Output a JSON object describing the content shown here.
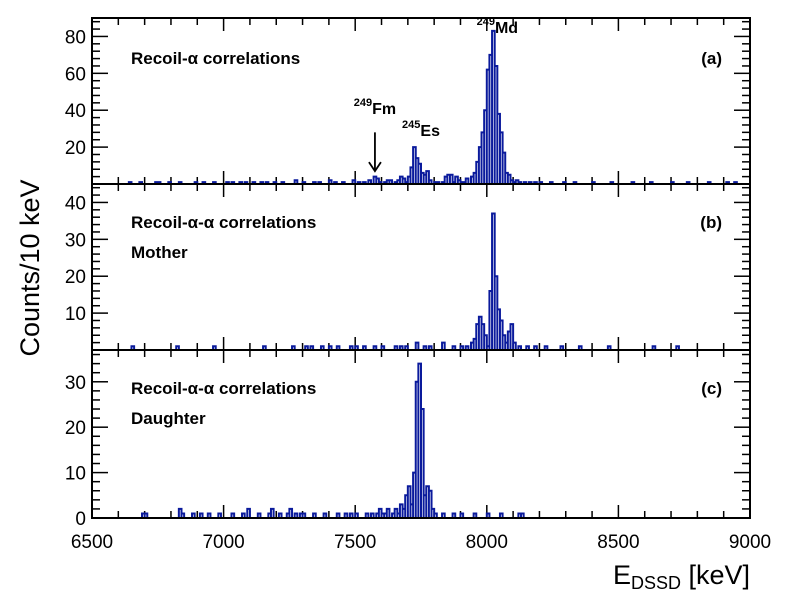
{
  "chart_data": {
    "type": "line",
    "style": "step-histogram",
    "series_color": "#0a1a9c",
    "xlabel_main": "E",
    "xlabel_sub": "DSSD",
    "xlabel_unit": " [keV]",
    "ylabel": "Counts/10 keV",
    "xlim": [
      6500,
      9000
    ],
    "xticks": [
      "6500",
      "7000",
      "7500",
      "8000",
      "8500",
      "9000"
    ],
    "bin_width": 10,
    "panels": [
      {
        "id": "a",
        "tag": "(a)",
        "title": "Recoil-α correlations",
        "subtitle": "",
        "ylim": [
          0,
          90
        ],
        "yticks": [
          "20",
          "40",
          "60",
          "80"
        ],
        "annotations": [
          {
            "sup": "249",
            "label": "Md",
            "x": 8040,
            "y": 82
          },
          {
            "sup": "245",
            "label": "Es",
            "x": 7750,
            "y": 26
          },
          {
            "sup": "249",
            "label": "Fm",
            "x": 7575,
            "y": 38,
            "arrow_to": 7,
            "arrow_from": 28
          }
        ],
        "bins": [
          [
            6640,
            1
          ],
          [
            6680,
            1
          ],
          [
            6740,
            1
          ],
          [
            6750,
            1
          ],
          [
            6790,
            1
          ],
          [
            6830,
            1
          ],
          [
            6890,
            1
          ],
          [
            6920,
            1
          ],
          [
            6960,
            1
          ],
          [
            7010,
            1
          ],
          [
            7030,
            1
          ],
          [
            7060,
            1
          ],
          [
            7080,
            1
          ],
          [
            7110,
            1
          ],
          [
            7140,
            1
          ],
          [
            7160,
            1
          ],
          [
            7190,
            1
          ],
          [
            7220,
            1
          ],
          [
            7270,
            2
          ],
          [
            7300,
            1
          ],
          [
            7340,
            1
          ],
          [
            7360,
            1
          ],
          [
            7400,
            2
          ],
          [
            7420,
            1
          ],
          [
            7450,
            1
          ],
          [
            7490,
            2
          ],
          [
            7510,
            1
          ],
          [
            7530,
            1
          ],
          [
            7550,
            2
          ],
          [
            7570,
            4
          ],
          [
            7580,
            3
          ],
          [
            7590,
            1
          ],
          [
            7610,
            1
          ],
          [
            7620,
            2
          ],
          [
            7630,
            2
          ],
          [
            7650,
            1
          ],
          [
            7660,
            2
          ],
          [
            7670,
            4
          ],
          [
            7680,
            3
          ],
          [
            7690,
            1
          ],
          [
            7700,
            4
          ],
          [
            7710,
            9
          ],
          [
            7720,
            20
          ],
          [
            7730,
            14
          ],
          [
            7740,
            11
          ],
          [
            7750,
            6
          ],
          [
            7760,
            5
          ],
          [
            7770,
            7
          ],
          [
            7780,
            2
          ],
          [
            7800,
            1
          ],
          [
            7810,
            1
          ],
          [
            7830,
            1
          ],
          [
            7840,
            4
          ],
          [
            7850,
            5
          ],
          [
            7860,
            5
          ],
          [
            7870,
            1
          ],
          [
            7880,
            4
          ],
          [
            7890,
            2
          ],
          [
            7900,
            1
          ],
          [
            7910,
            1
          ],
          [
            7920,
            3
          ],
          [
            7940,
            4
          ],
          [
            7950,
            6
          ],
          [
            7960,
            12
          ],
          [
            7970,
            20
          ],
          [
            7980,
            28
          ],
          [
            7990,
            40
          ],
          [
            8000,
            62
          ],
          [
            8010,
            70
          ],
          [
            8020,
            83
          ],
          [
            8030,
            64
          ],
          [
            8040,
            38
          ],
          [
            8050,
            28
          ],
          [
            8060,
            17
          ],
          [
            8070,
            6
          ],
          [
            8080,
            5
          ],
          [
            8090,
            2
          ],
          [
            8100,
            1
          ],
          [
            8110,
            2
          ],
          [
            8120,
            1
          ],
          [
            8140,
            1
          ],
          [
            8160,
            1
          ],
          [
            8180,
            1
          ],
          [
            8200,
            1
          ],
          [
            8240,
            1
          ],
          [
            8290,
            1
          ],
          [
            8330,
            1
          ],
          [
            8400,
            1
          ],
          [
            8470,
            1
          ],
          [
            8550,
            1
          ],
          [
            8620,
            1
          ],
          [
            8700,
            1
          ],
          [
            8760,
            1
          ],
          [
            8840,
            1
          ],
          [
            8910,
            1
          ],
          [
            8940,
            1
          ]
        ]
      },
      {
        "id": "b",
        "tag": "(b)",
        "title": "Recoil-α-α correlations",
        "subtitle": "Mother",
        "ylim": [
          0,
          45
        ],
        "yticks": [
          "10",
          "20",
          "30",
          "40"
        ],
        "annotations": [],
        "bins": [
          [
            6650,
            1
          ],
          [
            6820,
            1
          ],
          [
            6960,
            1
          ],
          [
            7150,
            1
          ],
          [
            7260,
            1
          ],
          [
            7310,
            1
          ],
          [
            7330,
            1
          ],
          [
            7370,
            1
          ],
          [
            7400,
            1
          ],
          [
            7430,
            1
          ],
          [
            7480,
            1
          ],
          [
            7500,
            1
          ],
          [
            7530,
            1
          ],
          [
            7570,
            1
          ],
          [
            7600,
            1
          ],
          [
            7650,
            1
          ],
          [
            7670,
            1
          ],
          [
            7690,
            1
          ],
          [
            7730,
            2
          ],
          [
            7760,
            1
          ],
          [
            7780,
            1
          ],
          [
            7830,
            2
          ],
          [
            7870,
            1
          ],
          [
            7900,
            1
          ],
          [
            7920,
            1
          ],
          [
            7940,
            2
          ],
          [
            7950,
            3
          ],
          [
            7960,
            7
          ],
          [
            7970,
            9
          ],
          [
            7980,
            7
          ],
          [
            7990,
            4
          ],
          [
            8000,
            1
          ],
          [
            8010,
            16
          ],
          [
            8020,
            37
          ],
          [
            8030,
            20
          ],
          [
            8040,
            11
          ],
          [
            8050,
            8
          ],
          [
            8060,
            4
          ],
          [
            8070,
            2
          ],
          [
            8080,
            5
          ],
          [
            8090,
            7
          ],
          [
            8100,
            2
          ],
          [
            8120,
            1
          ],
          [
            8150,
            1
          ],
          [
            8180,
            1
          ],
          [
            8220,
            1
          ],
          [
            8280,
            1
          ],
          [
            8350,
            1
          ],
          [
            8460,
            1
          ],
          [
            8630,
            1
          ],
          [
            8720,
            1
          ]
        ]
      },
      {
        "id": "c",
        "tag": "(c)",
        "title": "Recoil-α-α correlations",
        "subtitle": "Daughter",
        "ylim": [
          0,
          37
        ],
        "yticks": [
          "0",
          "10",
          "20",
          "30"
        ],
        "annotations": [],
        "bins": [
          [
            6690,
            1
          ],
          [
            6700,
            1
          ],
          [
            6830,
            2
          ],
          [
            6840,
            1
          ],
          [
            6880,
            1
          ],
          [
            6910,
            1
          ],
          [
            6940,
            1
          ],
          [
            6980,
            1
          ],
          [
            7030,
            1
          ],
          [
            7070,
            1
          ],
          [
            7090,
            2
          ],
          [
            7130,
            1
          ],
          [
            7170,
            1
          ],
          [
            7180,
            2
          ],
          [
            7210,
            1
          ],
          [
            7240,
            1
          ],
          [
            7250,
            2
          ],
          [
            7270,
            1
          ],
          [
            7290,
            1
          ],
          [
            7300,
            1
          ],
          [
            7340,
            1
          ],
          [
            7380,
            1
          ],
          [
            7430,
            1
          ],
          [
            7460,
            1
          ],
          [
            7480,
            1
          ],
          [
            7500,
            1
          ],
          [
            7540,
            1
          ],
          [
            7560,
            1
          ],
          [
            7580,
            1
          ],
          [
            7590,
            2
          ],
          [
            7600,
            1
          ],
          [
            7610,
            1
          ],
          [
            7620,
            2
          ],
          [
            7640,
            1
          ],
          [
            7650,
            2
          ],
          [
            7660,
            1
          ],
          [
            7670,
            3
          ],
          [
            7680,
            2
          ],
          [
            7690,
            5
          ],
          [
            7700,
            7
          ],
          [
            7710,
            3
          ],
          [
            7720,
            10
          ],
          [
            7730,
            30
          ],
          [
            7740,
            34
          ],
          [
            7750,
            24
          ],
          [
            7760,
            5
          ],
          [
            7770,
            7
          ],
          [
            7780,
            6
          ],
          [
            7790,
            2
          ],
          [
            7800,
            1
          ],
          [
            7830,
            1
          ],
          [
            7870,
            1
          ],
          [
            7900,
            1
          ],
          [
            7950,
            1
          ],
          [
            8000,
            1
          ],
          [
            8050,
            1
          ],
          [
            8120,
            1
          ],
          [
            8130,
            1
          ]
        ]
      }
    ]
  }
}
